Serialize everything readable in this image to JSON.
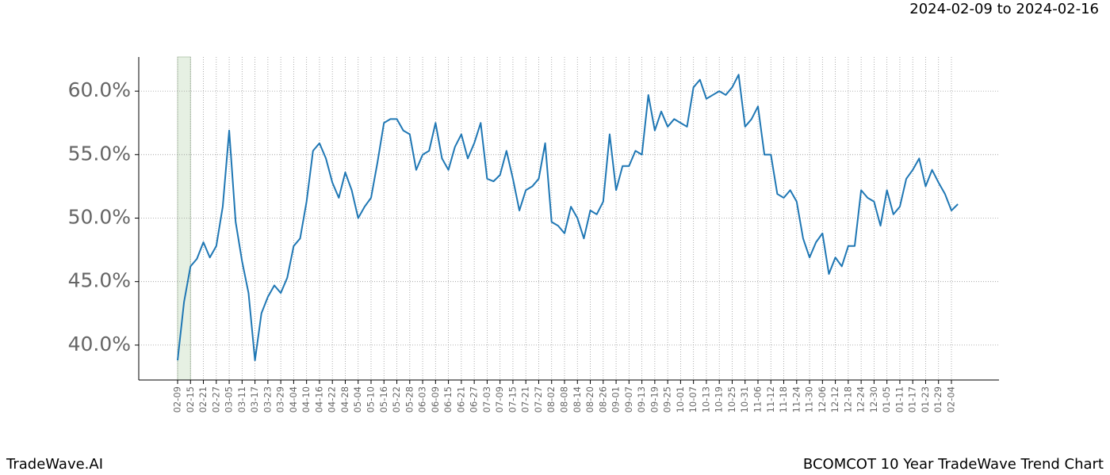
{
  "chart_data": {
    "type": "line",
    "title": "2024-02-09 to 2024-02-16",
    "categories": [
      "02-09",
      null,
      "02-15",
      null,
      "02-21",
      null,
      "02-27",
      null,
      "03-05",
      null,
      "03-11",
      null,
      "03-17",
      null,
      "03-23",
      null,
      "03-29",
      null,
      "04-04",
      null,
      "04-10",
      null,
      "04-16",
      null,
      "04-22",
      null,
      "04-28",
      null,
      "05-04",
      null,
      "05-10",
      null,
      "05-16",
      null,
      "05-22",
      null,
      "05-28",
      null,
      "06-03",
      null,
      "06-09",
      null,
      "06-15",
      null,
      "06-21",
      null,
      "06-27",
      null,
      "07-03",
      null,
      "07-09",
      null,
      "07-15",
      null,
      "07-21",
      null,
      "07-27",
      null,
      "08-02",
      null,
      "08-08",
      null,
      "08-14",
      null,
      "08-20",
      null,
      "08-26",
      null,
      "09-01",
      null,
      "09-07",
      null,
      "09-13",
      null,
      "09-19",
      null,
      "09-25",
      null,
      "10-01",
      null,
      "10-07",
      null,
      "10-13",
      null,
      "10-19",
      null,
      "10-25",
      null,
      "10-31",
      null,
      "11-06",
      null,
      "11-12",
      null,
      "11-18",
      null,
      "11-24",
      null,
      "11-30",
      null,
      "12-06",
      null,
      "12-12",
      null,
      "12-18",
      null,
      "12-24",
      null,
      "12-30",
      null,
      "01-05",
      null,
      "01-11",
      null,
      "01-17",
      null,
      "01-23",
      null,
      "01-29",
      null,
      "02-04",
      null
    ],
    "series": [
      {
        "color": "#1f77b4",
        "values": [
          38.8,
          43.4,
          46.2,
          46.8,
          48.1,
          46.9,
          47.8,
          50.9,
          56.9,
          49.7,
          46.6,
          44.1,
          38.8,
          42.5,
          43.8,
          44.7,
          44.1,
          45.3,
          47.8,
          48.4,
          51.3,
          55.3,
          55.9,
          54.7,
          52.8,
          51.6,
          53.6,
          52.2,
          50.0,
          50.9,
          51.6,
          54.4,
          57.5,
          57.8,
          57.8,
          56.9,
          56.6,
          53.8,
          55.0,
          55.3,
          57.5,
          54.7,
          53.8,
          55.6,
          56.6,
          54.7,
          55.9,
          57.5,
          53.1,
          52.9,
          53.4,
          55.3,
          53.1,
          50.6,
          52.2,
          52.5,
          53.1,
          55.9,
          49.7,
          49.4,
          48.8,
          50.9,
          50.0,
          48.4,
          50.6,
          50.3,
          51.3,
          56.6,
          52.2,
          54.1,
          54.1,
          55.3,
          55.0,
          59.7,
          56.9,
          58.4,
          57.2,
          57.8,
          57.5,
          57.2,
          60.3,
          60.9,
          59.4,
          59.7,
          60.0,
          59.7,
          60.3,
          61.3,
          57.2,
          57.8,
          58.8,
          55.0,
          55.0,
          51.9,
          51.6,
          52.2,
          51.3,
          48.4,
          46.9,
          48.1,
          48.8,
          45.6,
          46.9,
          46.2,
          47.8,
          47.8,
          52.2,
          51.6,
          51.3,
          49.4,
          52.2,
          50.3,
          50.9,
          53.1,
          53.8,
          54.7,
          52.5,
          53.8,
          52.8,
          51.9,
          50.6,
          51.1
        ]
      }
    ],
    "ylim": [
      37.25,
      62.69
    ],
    "yticks": [
      {
        "value": 40,
        "label": "40.0%"
      },
      {
        "value": 45,
        "label": "45.0%"
      },
      {
        "value": 50,
        "label": "50.0%"
      },
      {
        "value": 55,
        "label": "55.0%"
      },
      {
        "value": 60,
        "label": "60.0%"
      }
    ],
    "grid": true
  },
  "footer": {
    "left": "TradeWave.AI",
    "right": "BCOMCOT 10 Year TradeWave Trend Chart"
  }
}
